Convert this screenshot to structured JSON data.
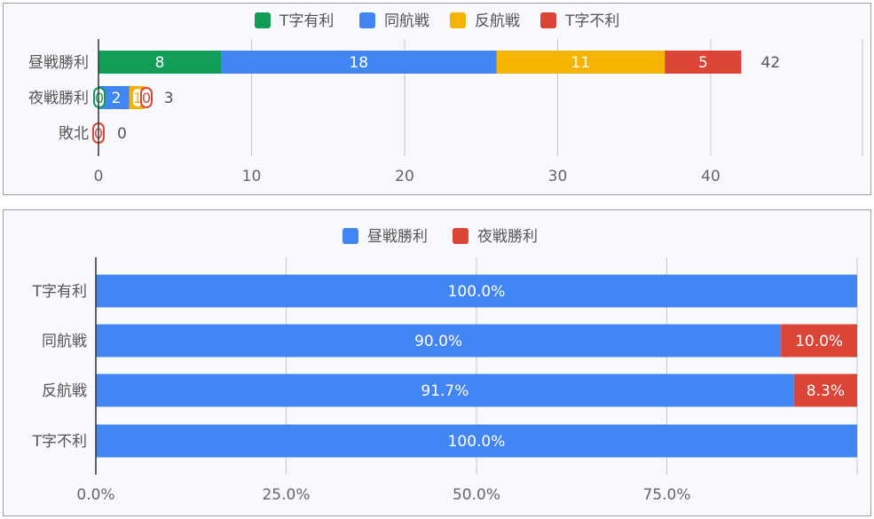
{
  "chart_data": [
    {
      "type": "bar",
      "orientation": "horizontal",
      "stacked": true,
      "categories": [
        "昼戦勝利",
        "夜戦勝利",
        "敗北"
      ],
      "series": [
        {
          "name": "T字有利",
          "color": "#0f9d58",
          "values": [
            8,
            0,
            0
          ]
        },
        {
          "name": "同航戦",
          "color": "#4285f4",
          "values": [
            18,
            2,
            0
          ]
        },
        {
          "name": "反航戦",
          "color": "#f4b400",
          "values": [
            11,
            1,
            0
          ]
        },
        {
          "name": "T字不利",
          "color": "#db4437",
          "values": [
            5,
            0,
            0
          ]
        }
      ],
      "totals": [
        42,
        3,
        0
      ],
      "xlim": [
        0,
        50
      ],
      "xticks": [
        0,
        10,
        20,
        30,
        40
      ],
      "legend_position": "top",
      "grid": true
    },
    {
      "type": "bar",
      "orientation": "horizontal",
      "stacked": "percent",
      "categories": [
        "T字有利",
        "同航戦",
        "反航戦",
        "T字不利"
      ],
      "series": [
        {
          "name": "昼戦勝利",
          "color": "#4285f4",
          "values": [
            100.0,
            90.0,
            91.7,
            100.0
          ],
          "labels": [
            "100.0%",
            "90.0%",
            "91.7%",
            "100.0%"
          ]
        },
        {
          "name": "夜戦勝利",
          "color": "#db4437",
          "values": [
            0,
            10.0,
            8.3,
            0
          ],
          "labels": [
            "",
            "10.0%",
            "8.3%",
            ""
          ]
        }
      ],
      "xlim": [
        0,
        100
      ],
      "xticks": [
        0,
        25,
        50,
        75,
        100
      ],
      "xtick_labels": [
        "0.0%",
        "25.0%",
        "50.0%",
        "75.0%",
        ""
      ],
      "legend_position": "top",
      "grid": true
    }
  ]
}
